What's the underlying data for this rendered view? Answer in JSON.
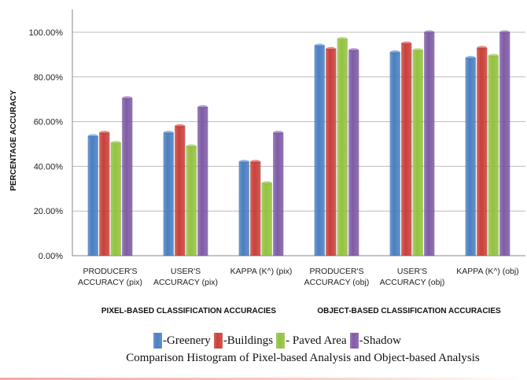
{
  "chart_data": {
    "type": "bar",
    "ylabel": "PERCENTAGE ACCURACY",
    "ylim": [
      0,
      100
    ],
    "yticks": [
      "0.00%",
      "20.00%",
      "40.00%",
      "60.00%",
      "80.00%",
      "100.00%"
    ],
    "categories": [
      [
        "PRODUCER'S",
        "ACCURACY (pix)"
      ],
      [
        "USER'S",
        "ACCURACY (pix)"
      ],
      [
        "KAPPA (K^) (pix)"
      ],
      [
        "PRODUCER'S",
        "ACCURACY (obj)"
      ],
      [
        "USER'S",
        "ACCURACY (obj)"
      ],
      [
        "KAPPA (K^) (obj)"
      ]
    ],
    "group_labels": [
      "PIXEL-BASED CLASSIFICATION ACCURACIES",
      "OBJECT-BASED  CLASSIFICATION ACCURACIES"
    ],
    "series": [
      {
        "name": "-Greenery",
        "color": "#4a7fc1",
        "values": [
          53.5,
          55,
          42,
          94,
          91,
          88.5
        ]
      },
      {
        "name": "-Buildings",
        "color": "#c9403a",
        "values": [
          55,
          58,
          42,
          92.5,
          95,
          93
        ]
      },
      {
        "name": "- Paved Area",
        "color": "#93c23f",
        "values": [
          50.5,
          49,
          32.5,
          97,
          92,
          89.5
        ]
      },
      {
        "name": "-Shadow",
        "color": "#7f5ba6",
        "values": [
          70.5,
          66.5,
          55,
          92,
          100,
          100
        ]
      }
    ],
    "grid": true
  },
  "caption": "Comparison Histogram of Pixel-based Analysis and Object-based Analysis"
}
